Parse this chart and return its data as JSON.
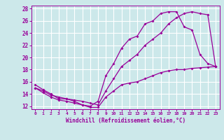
{
  "title": "",
  "xlabel": "Windchill (Refroidissement éolien,°C)",
  "ylabel": "",
  "bg_color": "#cce8ea",
  "grid_color": "#ffffff",
  "line_color": "#990099",
  "xlim": [
    -0.5,
    23.5
  ],
  "ylim": [
    11.5,
    28.5
  ],
  "xticks": [
    0,
    1,
    2,
    3,
    4,
    5,
    6,
    7,
    8,
    9,
    10,
    11,
    12,
    13,
    14,
    15,
    16,
    17,
    18,
    19,
    20,
    21,
    22,
    23
  ],
  "yticks": [
    12,
    14,
    16,
    18,
    20,
    22,
    24,
    26,
    28
  ],
  "series1_x": [
    0,
    1,
    2,
    3,
    4,
    5,
    6,
    7,
    8,
    9,
    10,
    11,
    12,
    13,
    14,
    15,
    16,
    17,
    18,
    19,
    20,
    21,
    22,
    23
  ],
  "series1_y": [
    15.5,
    14.7,
    14.0,
    13.2,
    13.2,
    12.8,
    12.2,
    12.0,
    12.8,
    17.0,
    19.0,
    21.5,
    23.0,
    23.5,
    25.5,
    26.0,
    27.2,
    27.5,
    27.5,
    25.0,
    24.5,
    20.5,
    19.0,
    18.5
  ],
  "series2_x": [
    0,
    1,
    2,
    3,
    4,
    5,
    6,
    7,
    8,
    9,
    10,
    11,
    12,
    13,
    14,
    15,
    16,
    17,
    18,
    19,
    20,
    21,
    22,
    23
  ],
  "series2_y": [
    15.0,
    14.5,
    13.8,
    13.5,
    13.2,
    13.0,
    12.8,
    12.5,
    12.2,
    14.5,
    16.5,
    18.5,
    19.5,
    20.5,
    22.0,
    23.0,
    24.0,
    25.5,
    26.5,
    27.2,
    27.5,
    27.2,
    27.0,
    18.5
  ],
  "series3_x": [
    0,
    1,
    2,
    3,
    4,
    5,
    6,
    7,
    8,
    9,
    10,
    11,
    12,
    13,
    14,
    15,
    16,
    17,
    18,
    19,
    20,
    21,
    22,
    23
  ],
  "series3_y": [
    15.0,
    14.2,
    13.5,
    13.0,
    12.8,
    12.5,
    12.2,
    11.8,
    11.8,
    13.5,
    14.5,
    15.5,
    15.8,
    16.0,
    16.5,
    17.0,
    17.5,
    17.8,
    18.0,
    18.0,
    18.2,
    18.3,
    18.4,
    18.5
  ],
  "xlabel_fontsize": 5.5,
  "ytick_fontsize": 5.5,
  "xtick_fontsize": 4.5,
  "marker_size": 2.0,
  "linewidth": 0.9
}
